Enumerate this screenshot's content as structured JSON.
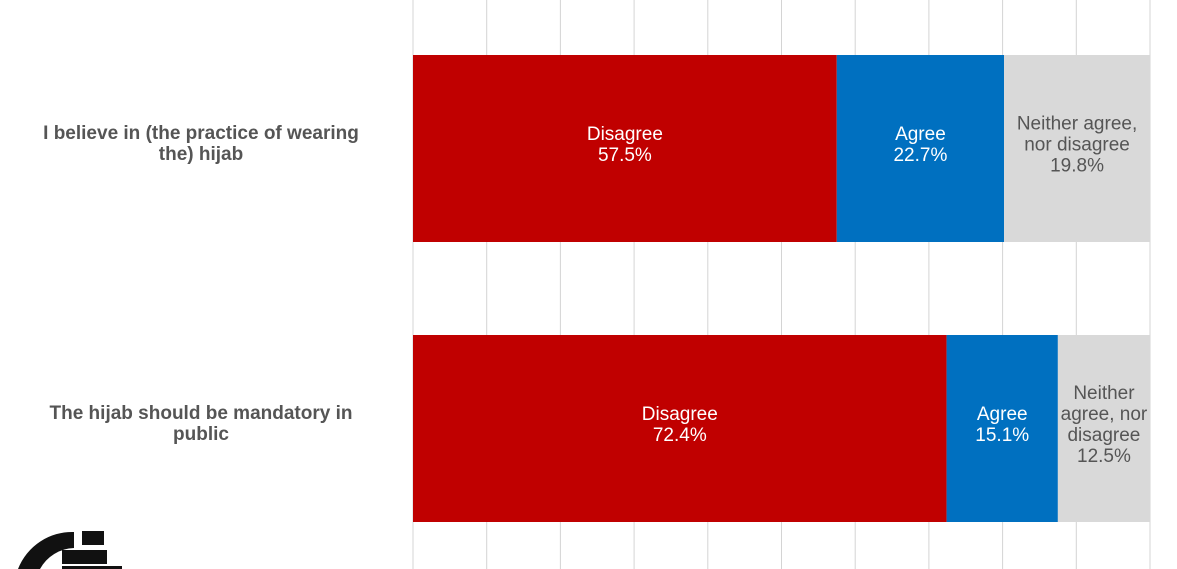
{
  "chart_data": {
    "type": "bar",
    "orientation": "horizontal",
    "stacked": true,
    "xlim": [
      0,
      100
    ],
    "grid": true,
    "categories": [
      [
        "I believe in (the practice of wearing",
        "the) hijab"
      ],
      [
        "The hijab should be mandatory in",
        "public"
      ]
    ],
    "series": [
      {
        "name": "Disagree",
        "color": "#c00000",
        "label_color": "#ffffff",
        "values": [
          57.5,
          72.4
        ],
        "value_labels": [
          "57.5%",
          "72.4%"
        ],
        "label_lines": [
          [
            "Disagree"
          ],
          [
            "Disagree"
          ]
        ]
      },
      {
        "name": "Agree",
        "color": "#0070c0",
        "label_color": "#ffffff",
        "values": [
          22.7,
          15.1
        ],
        "value_labels": [
          "22.7%",
          "15.1%"
        ],
        "label_lines": [
          [
            "Agree"
          ],
          [
            "Agree"
          ]
        ]
      },
      {
        "name": "Neither agree, nor disagree",
        "color": "#d9d9d9",
        "label_color": "#555555",
        "values": [
          19.8,
          12.5
        ],
        "value_labels": [
          "19.8%",
          "12.5%"
        ],
        "label_lines": [
          [
            "Neither agree,",
            "nor disagree"
          ],
          [
            "Neither",
            "agree, nor",
            "disagree"
          ]
        ]
      }
    ]
  },
  "logo": {
    "icon": "gamaan-logo-icon"
  }
}
